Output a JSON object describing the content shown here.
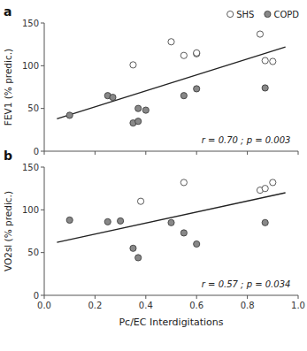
{
  "chart_data": [
    {
      "type": "scatter",
      "title": "a",
      "ylabel": "FEV1 (% predic.)",
      "annotation": "r = 0.70 ; p = 0.003",
      "xlim": [
        0.0,
        1.0
      ],
      "ylim": [
        0,
        150
      ],
      "xticks": [
        {
          "value": 0.0,
          "label": "0.0"
        },
        0.2,
        0.4,
        0.6,
        0.8,
        {
          "value": 1.0,
          "label": "1.0"
        }
      ],
      "yticks": [
        0,
        50,
        100,
        150
      ],
      "grid": false,
      "legend": "upper right",
      "tick_labels": "y",
      "series": [
        {
          "type": "line",
          "color": "#222222",
          "x": [
            0.05,
            0.95
          ],
          "values": [
            38,
            122
          ]
        },
        {
          "name": "COPD",
          "type": "scatter",
          "marker": "circle",
          "color": "#888888",
          "x": [
            0.1,
            0.25,
            0.27,
            0.35,
            0.37,
            0.37,
            0.4,
            0.55,
            0.6,
            0.87
          ],
          "values": [
            42,
            65,
            63,
            33,
            35,
            50,
            48,
            65,
            73,
            74
          ]
        },
        {
          "name": "SHS",
          "type": "scatter",
          "marker": "circle",
          "color": "white",
          "x": [
            0.35,
            0.5,
            0.55,
            0.6,
            0.6,
            0.85,
            0.87,
            0.9
          ],
          "values": [
            101,
            128,
            112,
            114,
            115,
            137,
            106,
            105
          ]
        }
      ]
    },
    {
      "type": "scatter",
      "title": "b",
      "ylabel": "VO2sl (% predic.)",
      "xlabel": "Pc/EC Interdigitations",
      "annotation": "r = 0.57 ; p = 0.034",
      "xlim": [
        0.0,
        1.0
      ],
      "ylim": [
        0,
        150
      ],
      "xticks": [
        {
          "value": 0.0,
          "label": "0.0"
        },
        0.2,
        0.4,
        0.6,
        0.8,
        {
          "value": 1.0,
          "label": "1.0"
        }
      ],
      "yticks": [
        0,
        50,
        100,
        150
      ],
      "grid": false,
      "series": [
        {
          "type": "line",
          "color": "#222222",
          "x": [
            0.05,
            0.95
          ],
          "values": [
            62,
            120
          ]
        },
        {
          "name": "COPD",
          "type": "scatter",
          "marker": "circle",
          "color": "#888888",
          "x": [
            0.1,
            0.25,
            0.3,
            0.35,
            0.37,
            0.5,
            0.55,
            0.6,
            0.87
          ],
          "values": [
            88,
            86,
            87,
            55,
            44,
            85,
            73,
            60,
            85
          ]
        },
        {
          "name": "SHS",
          "type": "scatter",
          "marker": "circle",
          "color": "white",
          "x": [
            0.38,
            0.55,
            0.85,
            0.87,
            0.9
          ],
          "values": [
            110,
            132,
            123,
            125,
            132
          ]
        }
      ]
    }
  ]
}
